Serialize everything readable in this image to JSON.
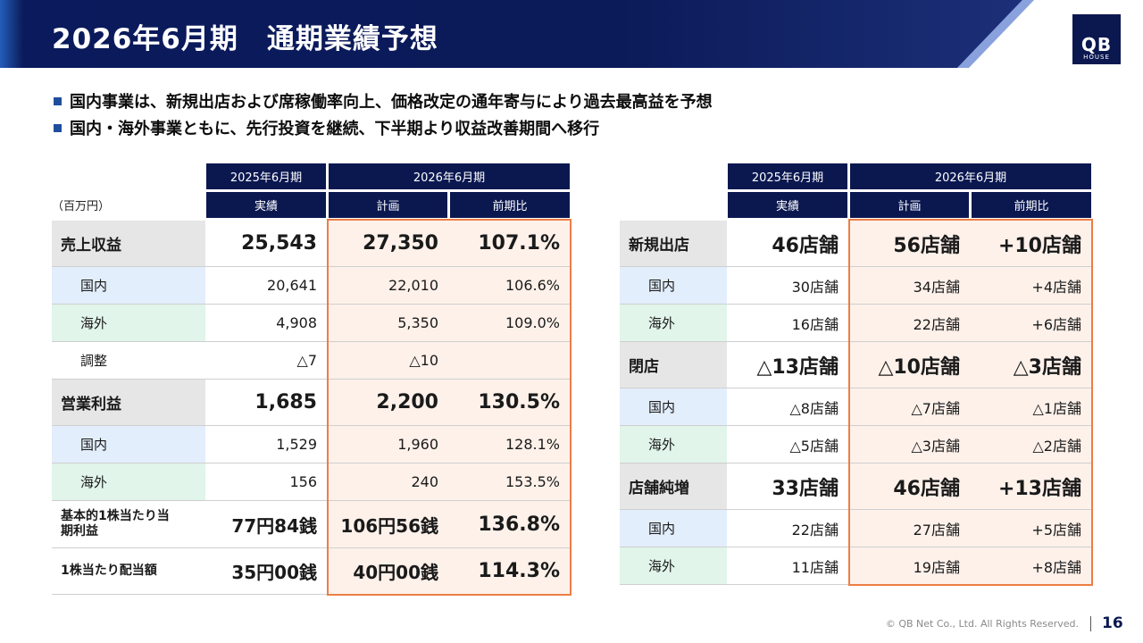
{
  "header": {
    "title": "2026年6月期　通期業績予想",
    "logo_main": "QB",
    "logo_sub": "HOUSE"
  },
  "bullets": [
    "国内事業は、新規出店および席稼働率向上、価格改定の通年寄与により過去最高益を予想",
    "国内・海外事業ともに、先行投資を継続、下半期より収益改善期間へ移行"
  ],
  "table_left": {
    "unit": "（百万円）",
    "header_period_actual": "2025年6月期",
    "header_period_plan": "2026年6月期",
    "col_actual": "実績",
    "col_plan": "計画",
    "col_yoy": "前期比",
    "rows": [
      {
        "label": "売上収益",
        "actual": "25,543",
        "plan": "27,350",
        "yoy": "107.1%"
      },
      {
        "label": "国内",
        "actual": "20,641",
        "plan": "22,010",
        "yoy": "106.6%"
      },
      {
        "label": "海外",
        "actual": "4,908",
        "plan": "5,350",
        "yoy": "109.0%"
      },
      {
        "label": "調整",
        "actual": "△7",
        "plan": "△10",
        "yoy": ""
      },
      {
        "label": "営業利益",
        "actual": "1,685",
        "plan": "2,200",
        "yoy": "130.5%"
      },
      {
        "label": "国内",
        "actual": "1,529",
        "plan": "1,960",
        "yoy": "128.1%"
      },
      {
        "label": "海外",
        "actual": "156",
        "plan": "240",
        "yoy": "153.5%"
      },
      {
        "label": "基本的1株当たり当期利益",
        "actual": "77円84銭",
        "plan": "106円56銭",
        "yoy": "136.8%"
      },
      {
        "label": "1株当たり配当額",
        "actual": "35円00銭",
        "plan": "40円00銭",
        "yoy": "114.3%"
      }
    ]
  },
  "table_right": {
    "header_period_actual": "2025年6月期",
    "header_period_plan": "2026年6月期",
    "col_actual": "実績",
    "col_plan": "計画",
    "col_yoy": "前期比",
    "rows": [
      {
        "label": "新規出店",
        "actual": "46店舗",
        "plan": "56店舗",
        "yoy": "+10店舗"
      },
      {
        "label": "国内",
        "actual": "30店舗",
        "plan": "34店舗",
        "yoy": "+4店舗"
      },
      {
        "label": "海外",
        "actual": "16店舗",
        "plan": "22店舗",
        "yoy": "+6店舗"
      },
      {
        "label": "閉店",
        "actual": "△13店舗",
        "plan": "△10店舗",
        "yoy": "△3店舗"
      },
      {
        "label": "国内",
        "actual": "△8店舗",
        "plan": "△7店舗",
        "yoy": "△1店舗"
      },
      {
        "label": "海外",
        "actual": "△5店舗",
        "plan": "△3店舗",
        "yoy": "△2店舗"
      },
      {
        "label": "店舗純増",
        "actual": "33店舗",
        "plan": "46店舗",
        "yoy": "+13店舗"
      },
      {
        "label": "国内",
        "actual": "22店舗",
        "plan": "27店舗",
        "yoy": "+5店舗"
      },
      {
        "label": "海外",
        "actual": "11店舗",
        "plan": "19店舗",
        "yoy": "+8店舗"
      }
    ]
  },
  "footer": {
    "copyright": "© QB Net Co., Ltd. All Rights Reserved.",
    "page_number": "16"
  },
  "colors": {
    "navy": "#0b1850",
    "accent_orange": "#ec7e45",
    "plan_fill": "#fdf1ea",
    "domestic_fill": "#e3eefc",
    "overseas_fill": "#e1f5ea"
  }
}
